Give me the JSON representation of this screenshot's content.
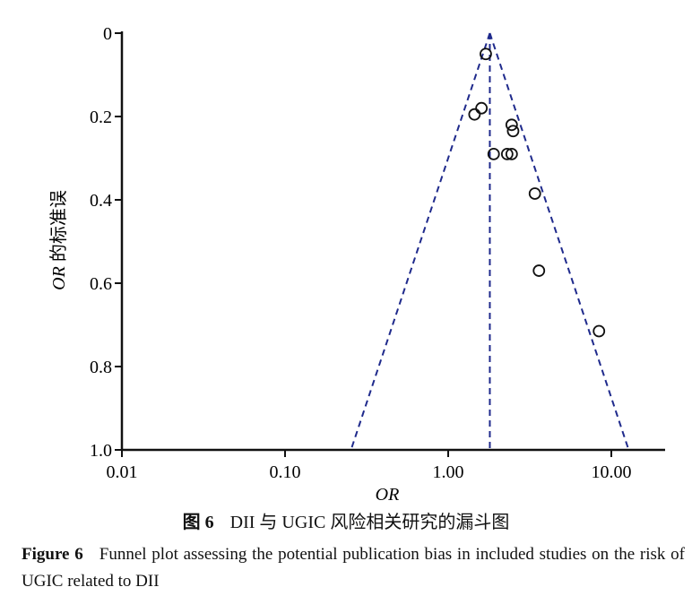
{
  "chart_data": {
    "type": "scatter",
    "xlabel": "OR",
    "ylabel": "OR 的标准误",
    "x_scale": "log",
    "xlim": [
      0.01,
      20
    ],
    "ylim": [
      0,
      1.0
    ],
    "y_inverted": true,
    "x_ticks": [
      0.01,
      0.1,
      1.0,
      10.0
    ],
    "x_tick_labels": [
      "0.01",
      "0.10",
      "1.00",
      "10.00"
    ],
    "y_ticks": [
      0,
      0.2,
      0.4,
      0.6,
      0.8,
      1.0
    ],
    "y_tick_labels": [
      "0",
      "0.2",
      "0.4",
      "0.6",
      "0.8",
      "1.0"
    ],
    "pooled_or": 1.8,
    "funnel_ci": "95%",
    "grid": false,
    "points": [
      {
        "or": 1.7,
        "se": 0.05
      },
      {
        "or": 1.45,
        "se": 0.195
      },
      {
        "or": 1.6,
        "se": 0.18
      },
      {
        "or": 2.45,
        "se": 0.22
      },
      {
        "or": 2.5,
        "se": 0.235
      },
      {
        "or": 1.9,
        "se": 0.29
      },
      {
        "or": 2.3,
        "se": 0.29
      },
      {
        "or": 2.45,
        "se": 0.29
      },
      {
        "or": 3.4,
        "se": 0.385
      },
      {
        "or": 3.6,
        "se": 0.57
      },
      {
        "or": 8.4,
        "se": 0.715
      }
    ],
    "colors": {
      "funnel": "#1f2a8c",
      "points": "#111111",
      "axis": "#111111"
    }
  },
  "caption_cn": {
    "fig_no": "图 6",
    "text": "DII 与 UGIC 风险相关研究的漏斗图"
  },
  "caption_en": {
    "fig_no": "Figure 6",
    "text": "Funnel plot assessing the potential publication bias in included studies on the risk of UGIC related to DII"
  }
}
